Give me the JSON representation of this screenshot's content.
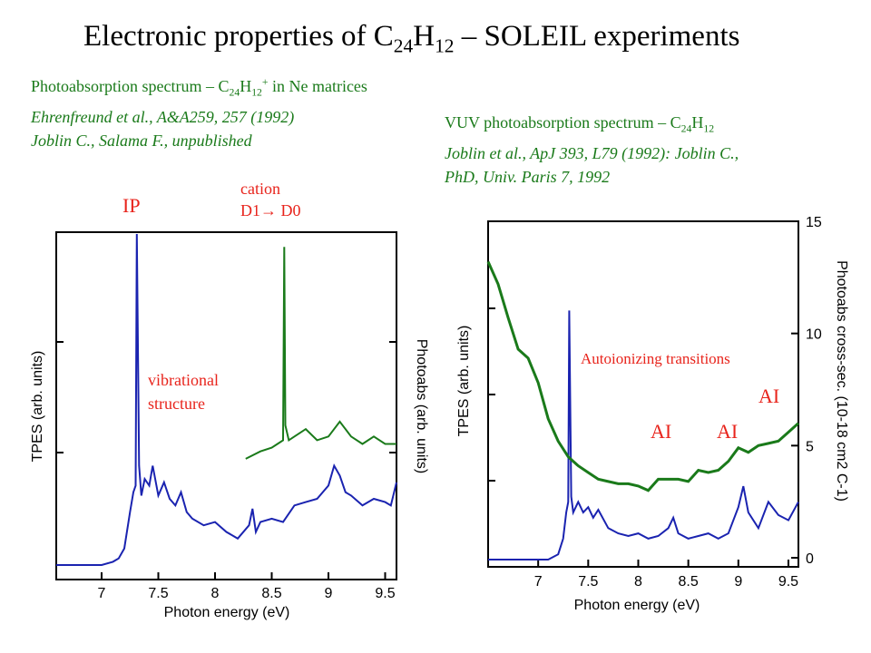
{
  "title": {
    "pre": "Electronic properties of C",
    "sub1": "24",
    "mid": "H",
    "sub2": "12",
    "post": " – SOLEIL experiments"
  },
  "left_text": {
    "line1_pre": "Photoabsorption spectrum – C",
    "line1_sub1": "24",
    "line1_mid": "H",
    "line1_sub2": "12",
    "line1_sup": "+",
    "line1_post": " in Ne matrices",
    "line2": "Ehrenfreund et al., A&A259, 257 (1992)",
    "line3": "Joblin C., Salama F., unpublished"
  },
  "right_text": {
    "line1_pre": "VUV photoabsorption spectrum – C",
    "line1_sub1": "24",
    "line1_mid": "H",
    "line1_sub2": "12",
    "line2": "Joblin et al., ApJ 393, L79 (1992): Joblin C.,",
    "line3": "PhD, Univ. Paris 7, 1992"
  },
  "annotations": {
    "ip": "IP",
    "cation_l1": "cation",
    "cation_l2_a": "D1",
    "cation_arrow": "→",
    "cation_l2_b": " D0",
    "vib_l1": "vibrational",
    "vib_l2": "structure",
    "autoionizing": "Autoionizing transitions",
    "ai1": "AI",
    "ai2": "AI",
    "ai3": "AI"
  },
  "colors": {
    "tpes": "#1a23b0",
    "photoabs": "#1a7a1a",
    "annotation": "#e8241c"
  },
  "chart_data": [
    {
      "type": "line",
      "xlabel": "Photon energy (eV)",
      "ylabel": "TPES (arb. units)",
      "y2label": "Photoabs (arb. units)",
      "xlim": [
        6.6,
        9.6
      ],
      "xticks": [
        "7",
        "7.5",
        "8",
        "8.5",
        "9",
        "9.5"
      ],
      "series": [
        {
          "x": [
            6.6,
            7.0,
            7.1,
            7.15,
            7.2,
            7.25,
            7.28,
            7.3,
            7.31,
            7.33,
            7.35,
            7.38,
            7.42,
            7.45,
            7.5,
            7.55,
            7.6,
            7.65,
            7.7,
            7.75,
            7.8,
            7.9,
            8.0,
            8.1,
            8.2,
            8.3,
            8.33,
            8.36,
            8.4,
            8.5,
            8.6,
            8.7,
            8.8,
            8.9,
            9.0,
            9.05,
            9.1,
            9.15,
            9.2,
            9.3,
            9.4,
            9.5,
            9.55,
            9.6
          ],
          "y": [
            0,
            0,
            0.01,
            0.02,
            0.05,
            0.16,
            0.22,
            0.24,
            1.0,
            0.3,
            0.21,
            0.26,
            0.24,
            0.3,
            0.21,
            0.25,
            0.2,
            0.18,
            0.22,
            0.16,
            0.14,
            0.12,
            0.13,
            0.1,
            0.08,
            0.12,
            0.17,
            0.1,
            0.13,
            0.14,
            0.13,
            0.18,
            0.19,
            0.2,
            0.24,
            0.3,
            0.27,
            0.22,
            0.21,
            0.18,
            0.2,
            0.19,
            0.18,
            0.25
          ]
        },
        {
          "x": [
            8.27,
            8.4,
            8.5,
            8.55,
            8.6,
            8.61,
            8.62,
            8.65,
            8.7,
            8.8,
            8.9,
            9.0,
            9.1,
            9.2,
            9.3,
            9.4,
            9.5,
            9.6
          ],
          "y": [
            0.31,
            0.33,
            0.34,
            0.35,
            0.36,
            0.88,
            0.4,
            0.36,
            0.37,
            0.39,
            0.36,
            0.37,
            0.41,
            0.37,
            0.35,
            0.37,
            0.35,
            0.35
          ]
        }
      ]
    },
    {
      "type": "line",
      "xlabel": "Photon energy (eV)",
      "ylabel": "TPES (arb. units)",
      "y2label": "Photoabs cross-sec. (10-18 cm2 C-1)",
      "xlim": [
        6.5,
        9.6
      ],
      "xticks": [
        "7",
        "7.5",
        "8",
        "8.5",
        "9",
        "9.5"
      ],
      "y2lim": [
        0,
        15
      ],
      "y2ticks": [
        "0",
        "5",
        "10",
        "15"
      ],
      "series": [
        {
          "x": [
            6.5,
            7.1,
            7.2,
            7.25,
            7.28,
            7.3,
            7.31,
            7.33,
            7.35,
            7.4,
            7.45,
            7.5,
            7.55,
            7.6,
            7.7,
            7.8,
            7.9,
            8.0,
            8.1,
            8.2,
            8.3,
            8.35,
            8.4,
            8.5,
            8.6,
            8.7,
            8.8,
            8.9,
            9.0,
            9.05,
            9.1,
            9.2,
            9.3,
            9.4,
            9.5,
            9.6
          ],
          "y": [
            0,
            0,
            0.02,
            0.08,
            0.18,
            0.22,
            0.95,
            0.24,
            0.18,
            0.22,
            0.18,
            0.2,
            0.16,
            0.19,
            0.12,
            0.1,
            0.09,
            0.1,
            0.08,
            0.09,
            0.12,
            0.16,
            0.1,
            0.08,
            0.09,
            0.1,
            0.08,
            0.1,
            0.2,
            0.28,
            0.18,
            0.12,
            0.22,
            0.17,
            0.15,
            0.22
          ]
        },
        {
          "x": [
            6.5,
            6.6,
            6.7,
            6.8,
            6.9,
            7.0,
            7.1,
            7.2,
            7.3,
            7.4,
            7.5,
            7.6,
            7.7,
            7.8,
            7.9,
            8.0,
            8.1,
            8.2,
            8.3,
            8.4,
            8.5,
            8.6,
            8.7,
            8.8,
            8.9,
            9.0,
            9.1,
            9.2,
            9.3,
            9.4,
            9.5,
            9.6
          ],
          "y": [
            13.2,
            12.2,
            10.7,
            9.3,
            8.9,
            7.8,
            6.2,
            5.2,
            4.5,
            4.1,
            3.8,
            3.5,
            3.4,
            3.3,
            3.3,
            3.2,
            3.0,
            3.5,
            3.5,
            3.5,
            3.4,
            3.9,
            3.8,
            3.9,
            4.3,
            4.9,
            4.7,
            5.0,
            5.1,
            5.2,
            5.6,
            6.0
          ]
        }
      ]
    }
  ]
}
